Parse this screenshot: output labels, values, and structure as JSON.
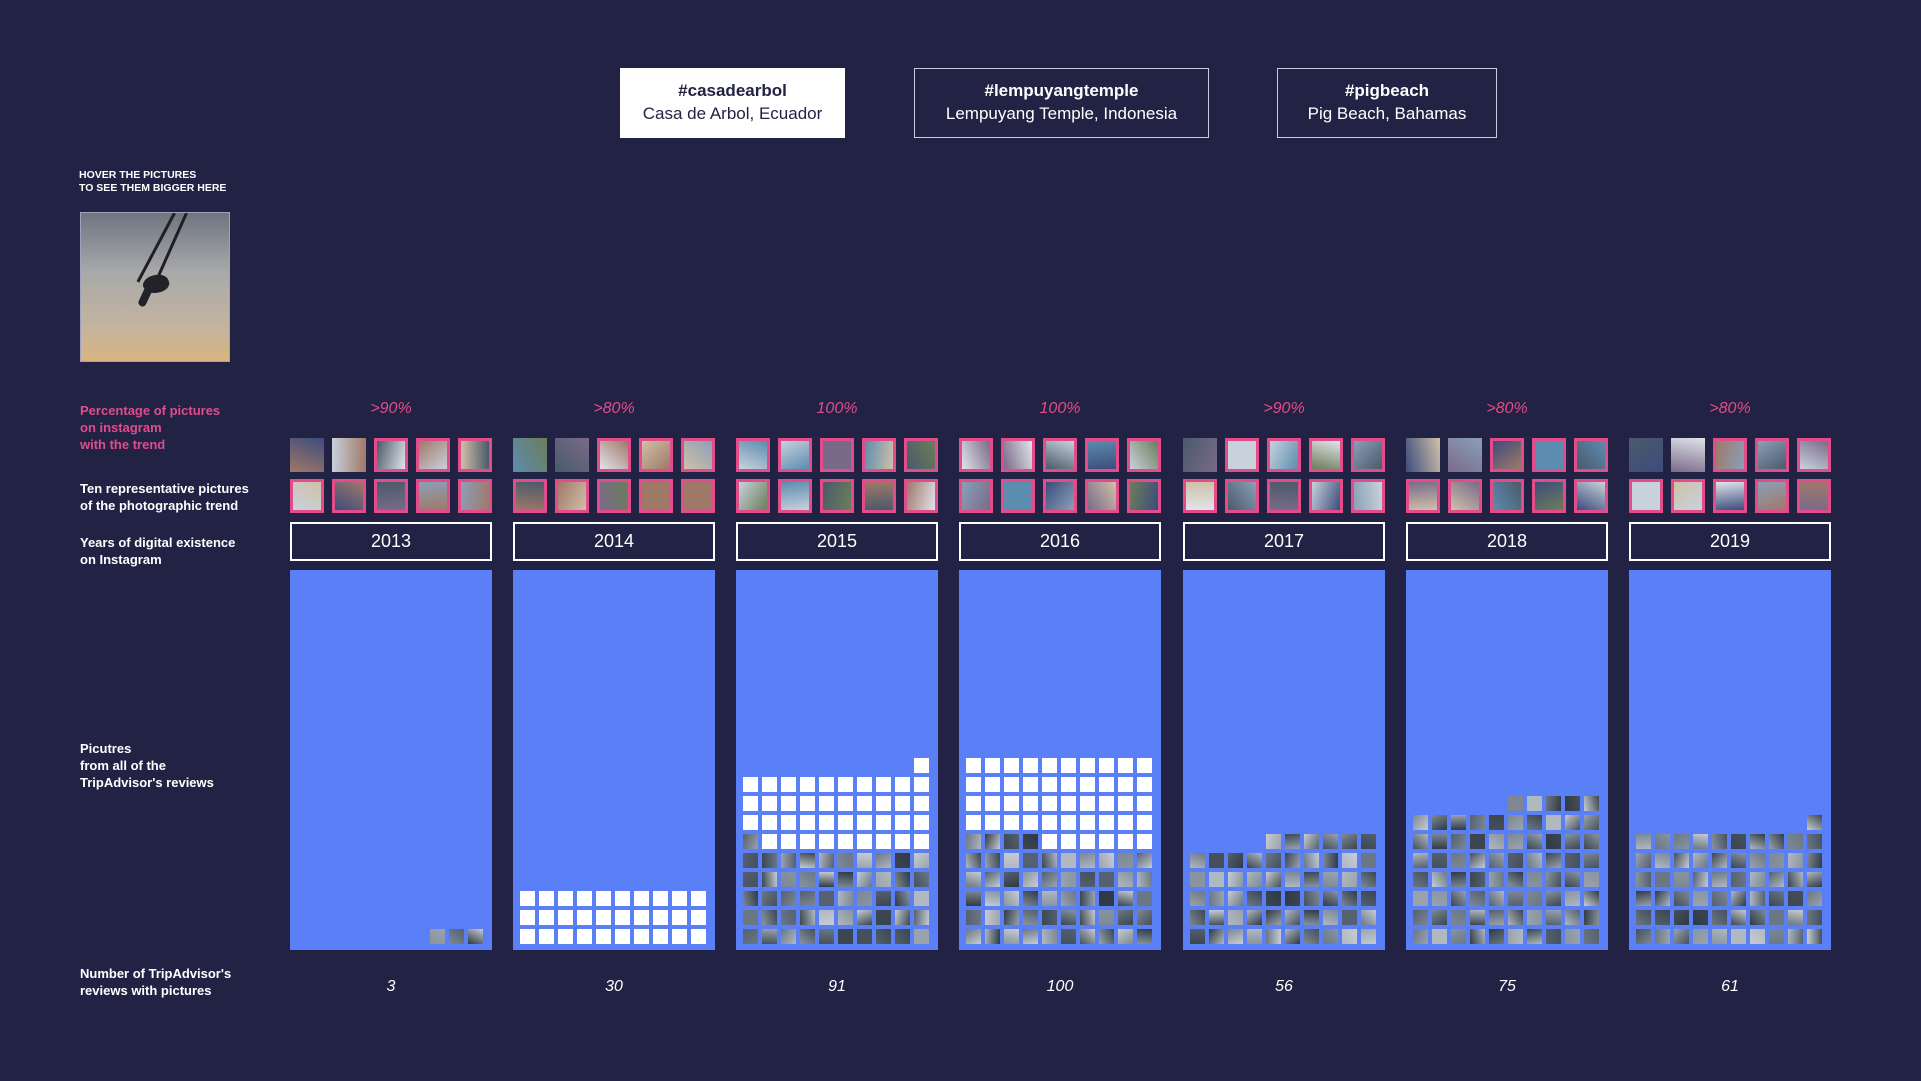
{
  "colors": {
    "background": "#222245",
    "column": "#5b7ff6",
    "accent_pink": "#e04d8a",
    "square_empty": "#ffffff"
  },
  "tabs": [
    {
      "tag": "#casadearbol",
      "place": "Casa de Arbol, Ecuador",
      "active": true
    },
    {
      "tag": "#lempuyangtemple",
      "place": "Lempuyang Temple, Indonesia",
      "active": false
    },
    {
      "tag": "#pigbeach",
      "place": "Pig Beach, Bahamas",
      "active": false
    }
  ],
  "hover_note": {
    "line1": "HOVER THE PICTURES",
    "line2": "TO SEE THEM BIGGER HERE"
  },
  "preview_icon": "swing-photo",
  "labels": {
    "percentage": [
      "Percentage of pictures",
      "on instagram",
      "with the trend"
    ],
    "representative": [
      "Ten representative pictures",
      "of the photographic trend"
    ],
    "years": [
      "Years of digital existence",
      "on Instagram"
    ],
    "pictures": [
      "Picutres",
      "from all of the",
      "TripAdvisor's reviews"
    ],
    "number": [
      "Number of TripAdvisor's",
      "reviews with pictures"
    ]
  },
  "chart_data": {
    "type": "waffle",
    "categories": [
      "2013",
      "2014",
      "2015",
      "2016",
      "2017",
      "2018",
      "2019"
    ],
    "percent_labels": [
      ">90%",
      ">80%",
      "100%",
      "100%",
      ">90%",
      ">80%",
      ">80%"
    ],
    "review_counts": [
      3,
      30,
      91,
      100,
      56,
      75,
      61
    ],
    "photo_squares": [
      3,
      0,
      51,
      54,
      56,
      75,
      61
    ],
    "highlighted_thumbs": [
      [
        false,
        false,
        true,
        true,
        true,
        true,
        true,
        true,
        true,
        true
      ],
      [
        false,
        false,
        true,
        true,
        true,
        true,
        true,
        true,
        true,
        true
      ],
      [
        true,
        true,
        true,
        true,
        true,
        true,
        true,
        true,
        true,
        true
      ],
      [
        true,
        true,
        true,
        true,
        true,
        true,
        true,
        true,
        true,
        true
      ],
      [
        false,
        true,
        true,
        true,
        true,
        true,
        true,
        true,
        true,
        true
      ],
      [
        false,
        false,
        true,
        true,
        true,
        true,
        true,
        true,
        true,
        true
      ],
      [
        false,
        false,
        true,
        true,
        true,
        true,
        true,
        true,
        true,
        true
      ]
    ],
    "squares_per_row": 10
  }
}
